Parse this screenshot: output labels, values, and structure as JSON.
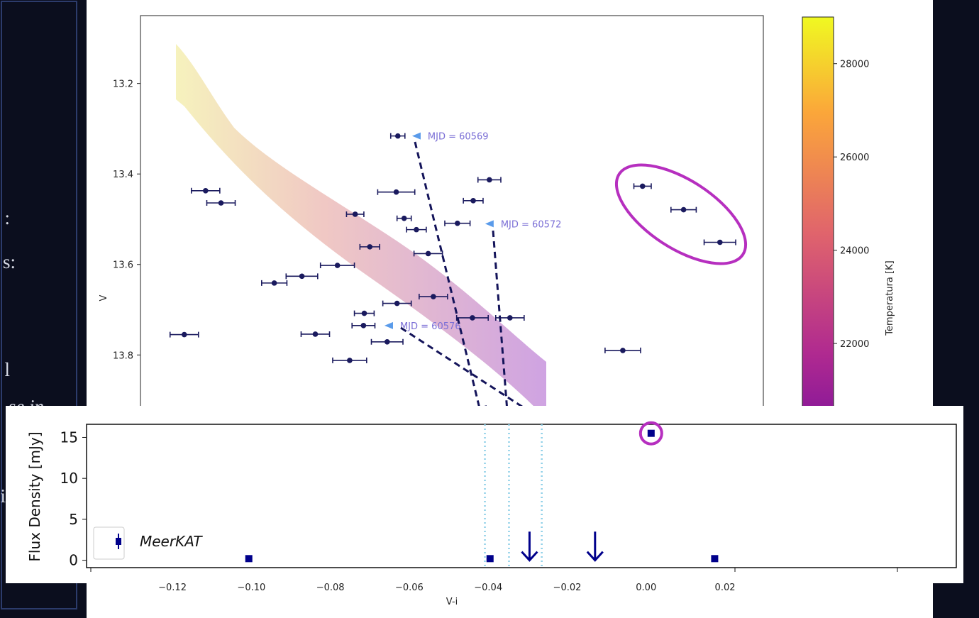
{
  "slide_fragments": [
    ":",
    "s:",
    "l",
    "se in",
    "i"
  ],
  "chart_data": [
    {
      "type": "scatter",
      "x_label": "V-i",
      "y_label": "V",
      "xlim": [
        -0.1281,
        0.0297
      ],
      "ylim": [
        13.05,
        14.27
      ],
      "y_inverted": true,
      "xticks": [
        {
          "value": -0.12,
          "label": "−0.12"
        },
        {
          "value": -0.1,
          "label": "−0.10"
        },
        {
          "value": -0.08,
          "label": "−0.08"
        },
        {
          "value": -0.06,
          "label": "−0.06"
        },
        {
          "value": -0.04,
          "label": "−0.04"
        },
        {
          "value": -0.02,
          "label": "−0.02"
        },
        {
          "value": 0,
          "label": "0.00"
        },
        {
          "value": 0.02,
          "label": "0.02"
        }
      ],
      "yticks": [
        13.2,
        13.4,
        13.6,
        13.8
      ],
      "series": [
        {
          "color": "#1a1a5e",
          "x": [
            -0.0629,
            -0.1116,
            -0.1077,
            -0.117,
            -0.0942,
            -0.0872,
            -0.0838,
            -0.0782,
            -0.0751,
            -0.0737,
            -0.0714,
            -0.0716,
            -0.07,
            -0.0656,
            -0.0633,
            -0.0613,
            -0.0582,
            -0.0631,
            -0.0552,
            -0.0539,
            -0.0478,
            -0.044,
            -0.0438,
            -0.0397,
            -0.0345,
            -0.0059,
            -0.0009,
            0.0095,
            0.0187
          ],
          "values": [
            13.316,
            13.437,
            13.464,
            13.755,
            13.641,
            13.626,
            13.754,
            13.602,
            13.812,
            13.489,
            13.708,
            13.735,
            13.561,
            13.771,
            13.44,
            13.498,
            13.523,
            13.686,
            13.576,
            13.671,
            13.509,
            13.718,
            13.459,
            13.413,
            13.718,
            13.79,
            13.427,
            13.479,
            13.551
          ],
          "xerr": [
            0.0018,
            0.0036,
            0.0036,
            0.0036,
            0.0032,
            0.004,
            0.0036,
            0.0043,
            0.0043,
            0.0022,
            0.0025,
            0.0029,
            0.0025,
            0.004,
            0.0047,
            0.0018,
            0.0025,
            0.0036,
            0.0036,
            0.0036,
            0.0032,
            0.004,
            0.0025,
            0.0029,
            0.0036,
            0.0045,
            0.0022,
            0.0032,
            0.004
          ]
        }
      ],
      "annotations": [
        {
          "text": "MJD = 60569",
          "x": -0.0582,
          "y": 13.316
        },
        {
          "text": "MJD = 60572",
          "x": -0.0397,
          "y": 13.51
        },
        {
          "text": "MJD = 60576",
          "x": -0.0652,
          "y": 13.735
        }
      ],
      "annotation_color": "#7b6fd6",
      "colorbar": {
        "label": "Temperatura [K]",
        "lim": [
          18700,
          29000
        ],
        "ticks": [
          22000,
          24000,
          26000,
          28000
        ],
        "colormap": "plasma"
      }
    },
    {
      "type": "scatter",
      "y_label": "Flux Density [mJy]",
      "xlim": [
        -0.1417,
        0.0786
      ],
      "ylim": [
        -0.9,
        16.6
      ],
      "yticks": [
        0,
        5,
        10,
        15
      ],
      "series": [
        {
          "name": "MeerKAT",
          "color": "#00008b",
          "x": [
            -0.1006,
            -0.0395,
            0.0013,
            0.0174
          ],
          "values": [
            0.2,
            0.2,
            15.5,
            0.2
          ]
        }
      ],
      "upper_limits": {
        "x": [
          -0.0295,
          -0.0129
        ],
        "values": [
          3.5,
          3.5
        ]
      },
      "reference_lines": [
        -0.0408,
        -0.0347,
        -0.0264
      ],
      "legend": "lower left"
    }
  ]
}
